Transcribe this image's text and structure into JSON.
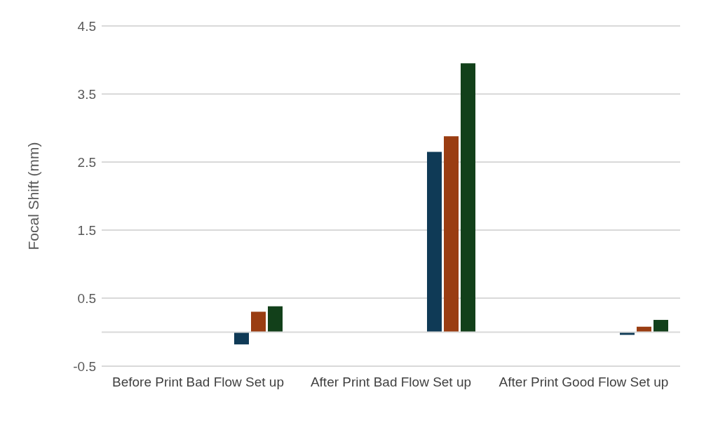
{
  "chart_data": {
    "type": "bar",
    "ylabel": "Focal Shift (mm)",
    "categories": [
      "Before Print Bad Flow Set up",
      "After Print Bad Flow Set up",
      "After Print Good Flow Set up"
    ],
    "series": [
      {
        "values": [
          null,
          null,
          null
        ]
      },
      {
        "values": [
          null,
          null,
          null
        ]
      },
      {
        "values": [
          null,
          null,
          null
        ]
      },
      {
        "values": [
          null,
          null,
          null
        ]
      },
      {
        "values": [
          null,
          null,
          null
        ]
      },
      {
        "values": [
          null,
          null,
          null
        ]
      },
      {
        "values": [
          null,
          null,
          null
        ]
      },
      {
        "color": "#0f3a56",
        "values": [
          -0.18,
          2.65,
          -0.04
        ]
      },
      {
        "color": "#9a3d12",
        "values": [
          0.3,
          2.88,
          0.08
        ]
      },
      {
        "color": "#12401a",
        "values": [
          0.38,
          3.95,
          0.18
        ]
      }
    ],
    "ylim": [
      -0.5,
      4.5
    ],
    "yticks": [
      -0.5,
      0.5,
      1.5,
      2.5,
      3.5,
      4.5
    ],
    "grid": "y",
    "legend": false
  }
}
